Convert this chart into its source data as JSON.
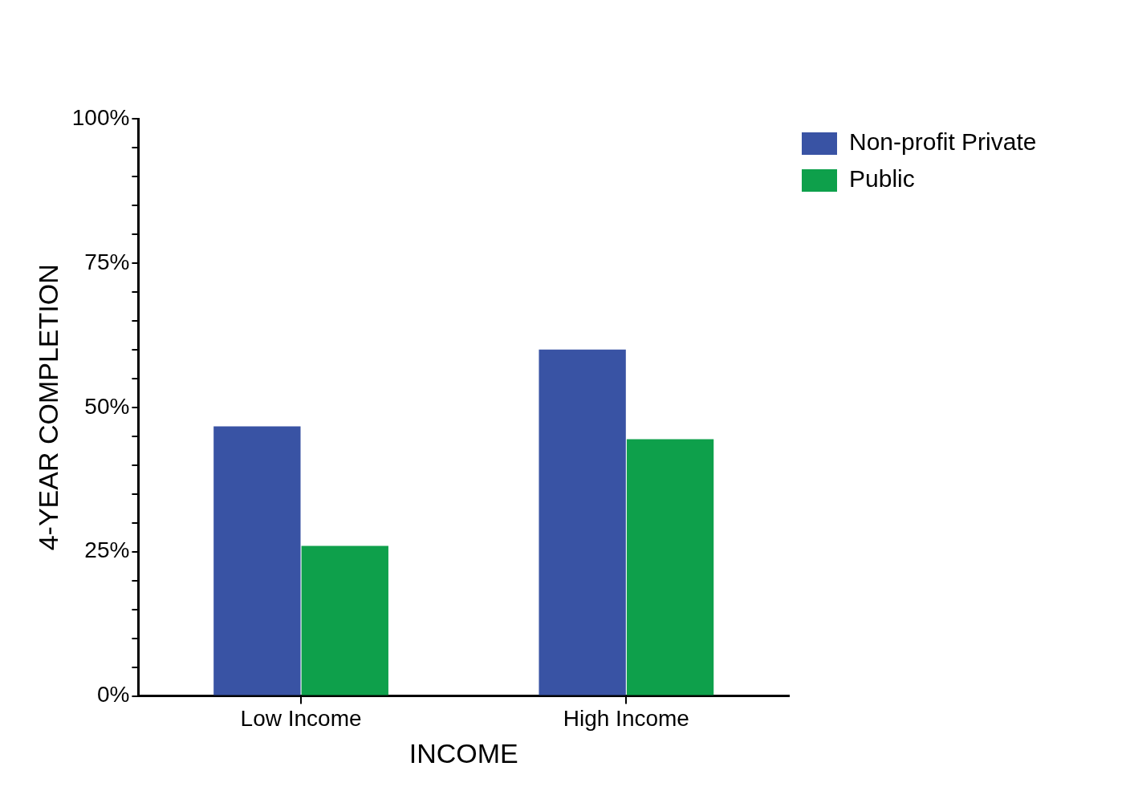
{
  "chart_data": {
    "type": "bar",
    "xlabel": "INCOME",
    "ylabel": "4-YEAR COMPLETION",
    "categories": [
      "Low Income",
      "High Income"
    ],
    "series": [
      {
        "name": "Non-profit Private",
        "color": "#3953a4",
        "values": [
          46.7,
          60
        ]
      },
      {
        "name": "Public",
        "color": "#0ea04b",
        "values": [
          26,
          44.5
        ]
      }
    ],
    "ylim": [
      0,
      100
    ],
    "yticks": [
      {
        "value": 0,
        "label": "0%"
      },
      {
        "value": 5,
        "label": null
      },
      {
        "value": 10,
        "label": null
      },
      {
        "value": 15,
        "label": null
      },
      {
        "value": 20,
        "label": null
      },
      {
        "value": 25,
        "label": "25%"
      },
      {
        "value": 30,
        "label": null
      },
      {
        "value": 35,
        "label": null
      },
      {
        "value": 40,
        "label": null
      },
      {
        "value": 45,
        "label": null
      },
      {
        "value": 50,
        "label": "50%"
      },
      {
        "value": 55,
        "label": null
      },
      {
        "value": 60,
        "label": null
      },
      {
        "value": 65,
        "label": null
      },
      {
        "value": 70,
        "label": null
      },
      {
        "value": 75,
        "label": "75%"
      },
      {
        "value": 80,
        "label": null
      },
      {
        "value": 85,
        "label": null
      },
      {
        "value": 90,
        "label": null
      },
      {
        "value": 95,
        "label": null
      },
      {
        "value": 100,
        "label": "100%"
      }
    ],
    "grid": false,
    "legend": "top right"
  }
}
